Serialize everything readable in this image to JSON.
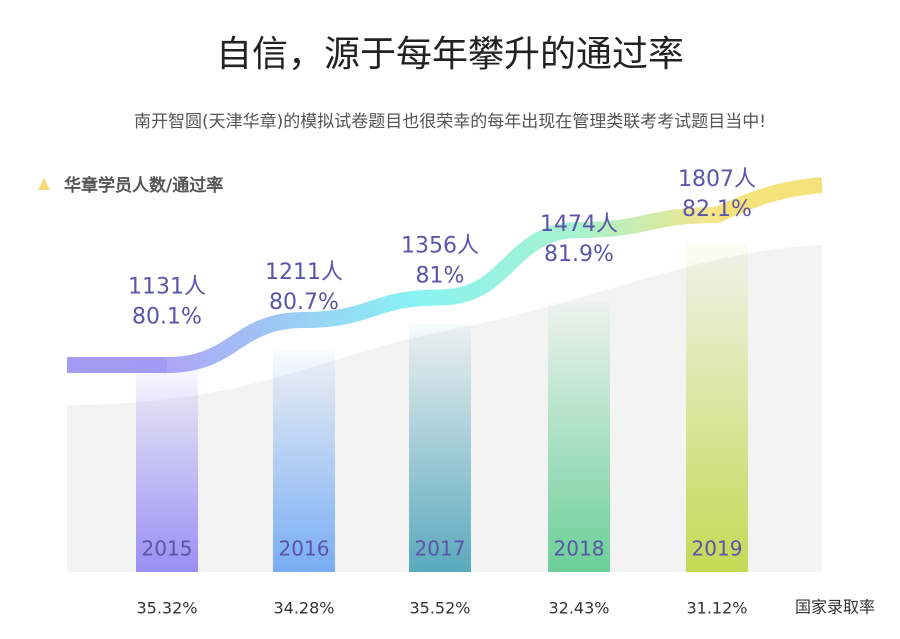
{
  "chart_data": {
    "type": "bar",
    "title": "自信，源于每年攀升的通过率",
    "subtitle": "南开智圆(天津华章)的模拟试卷题目也很荣幸的每年出现在管理类联考考试题目当中!",
    "y_label": "华章学员人数/通过率",
    "x_label": "国家录取率",
    "categories": [
      "2015",
      "2016",
      "2017",
      "2018",
      "2019"
    ],
    "colors": [
      "#9b8ef4",
      "#78adf4",
      "#5aa9bd",
      "#6bcf98",
      "#c4d955"
    ],
    "series": [
      {
        "name": "华章学员人数",
        "values": [
          1131,
          1211,
          1356,
          1474,
          1807
        ],
        "value_labels": [
          "1131人",
          "1211人",
          "1356人",
          "1474人",
          "1807人"
        ]
      },
      {
        "name": "通过率",
        "values": [
          80.1,
          80.7,
          81,
          81.9,
          82.1
        ],
        "value_labels": [
          "80.1%",
          "80.7%",
          "81%",
          "81.9%",
          "82.1%"
        ]
      },
      {
        "name": "国家录取率",
        "values": [
          35.32,
          34.28,
          35.52,
          32.43,
          31.12
        ],
        "value_labels": [
          "35.32%",
          "34.28%",
          "35.52%",
          "32.43%",
          "31.12%"
        ]
      }
    ]
  }
}
